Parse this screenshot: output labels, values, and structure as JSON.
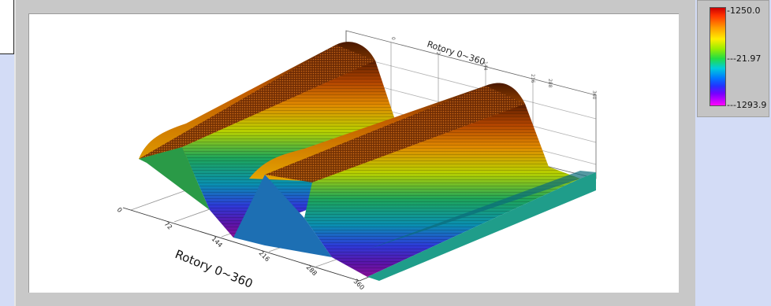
{
  "graph": {
    "axis_title_front": "Rotory 0~360",
    "axis_title_back": "Rotory 0~360",
    "front_ticks": [
      "0",
      "72",
      "144",
      "216",
      "288",
      "360"
    ],
    "back_ticks": [
      "0",
      "72",
      "144",
      "216",
      "288",
      "360"
    ]
  },
  "colorbar": {
    "max_label": "1250.0",
    "mid_label": "-21.97",
    "min_label": "-1293.9",
    "colors": [
      "#cc0000",
      "#ff9900",
      "#ffee00",
      "#22dd44",
      "#00ccdd",
      "#2233ff",
      "#ff00ff"
    ]
  }
}
